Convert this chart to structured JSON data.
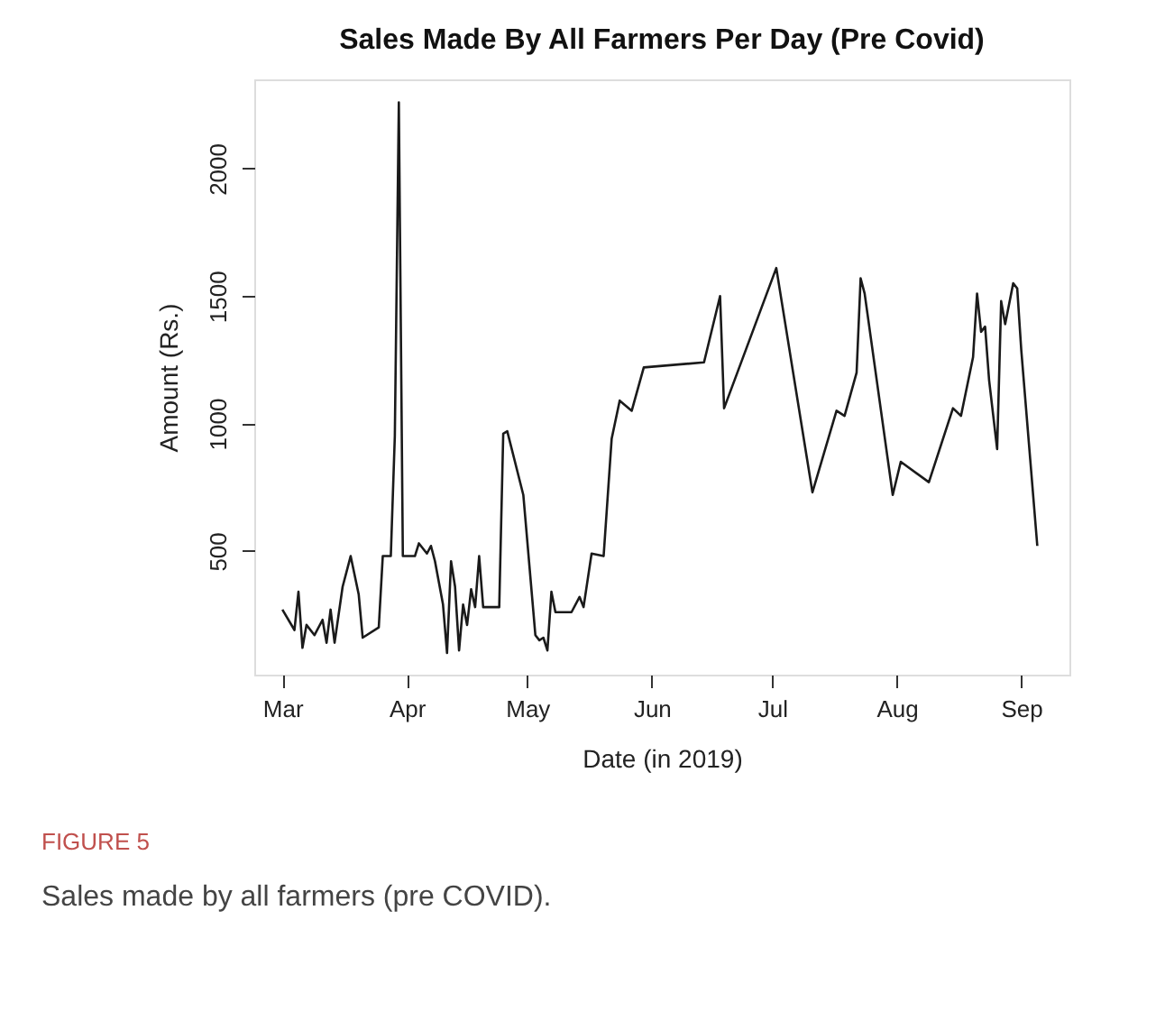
{
  "chart_data": {
    "type": "line",
    "title": "Sales Made By All Farmers Per Day (Pre Covid)",
    "xlabel": "Date (in 2019)",
    "ylabel": "Amount (Rs.)",
    "x": [
      "2019-03-01",
      "2019-03-04",
      "2019-03-05",
      "2019-03-06",
      "2019-03-07",
      "2019-03-09",
      "2019-03-11",
      "2019-03-12",
      "2019-03-13",
      "2019-03-14",
      "2019-03-16",
      "2019-03-18",
      "2019-03-20",
      "2019-03-21",
      "2019-03-25",
      "2019-03-26",
      "2019-03-28",
      "2019-03-29",
      "2019-03-30",
      "2019-03-31",
      "2019-04-03",
      "2019-04-04",
      "2019-04-06",
      "2019-04-07",
      "2019-04-08",
      "2019-04-10",
      "2019-04-11",
      "2019-04-12",
      "2019-04-13",
      "2019-04-14",
      "2019-04-15",
      "2019-04-16",
      "2019-04-17",
      "2019-04-18",
      "2019-04-19",
      "2019-04-20",
      "2019-04-24",
      "2019-04-25",
      "2019-04-26",
      "2019-04-30",
      "2019-05-03",
      "2019-05-04",
      "2019-05-05",
      "2019-05-06",
      "2019-05-07",
      "2019-05-08",
      "2019-05-12",
      "2019-05-14",
      "2019-05-15",
      "2019-05-17",
      "2019-05-20",
      "2019-05-22",
      "2019-05-24",
      "2019-05-27",
      "2019-05-30",
      "2019-06-14",
      "2019-06-18",
      "2019-06-19",
      "2019-07-02",
      "2019-07-11",
      "2019-07-17",
      "2019-07-19",
      "2019-07-22",
      "2019-07-23",
      "2019-07-24",
      "2019-07-31",
      "2019-08-02",
      "2019-08-09",
      "2019-08-15",
      "2019-08-17",
      "2019-08-20",
      "2019-08-21",
      "2019-08-22",
      "2019-08-23",
      "2019-08-24",
      "2019-08-26",
      "2019-08-27",
      "2019-08-28",
      "2019-08-29",
      "2019-08-30",
      "2019-08-31",
      "2019-09-01",
      "2019-09-05"
    ],
    "series": [
      {
        "color": "#1a1a1a",
        "values": [
          270,
          190,
          340,
          120,
          210,
          170,
          230,
          140,
          270,
          140,
          360,
          480,
          330,
          160,
          200,
          480,
          480,
          950,
          2260,
          480,
          480,
          530,
          490,
          520,
          460,
          290,
          100,
          460,
          360,
          110,
          290,
          210,
          350,
          280,
          480,
          280,
          280,
          960,
          970,
          720,
          170,
          150,
          160,
          110,
          340,
          260,
          260,
          320,
          280,
          490,
          480,
          940,
          1090,
          1050,
          1220,
          1240,
          1500,
          1060,
          1610,
          730,
          1050,
          1030,
          1200,
          1570,
          1510,
          720,
          850,
          770,
          1060,
          1030,
          1260,
          1510,
          1360,
          1380,
          1170,
          900,
          1480,
          1390,
          1470,
          1550,
          1530,
          1290,
          520
        ]
      }
    ],
    "xlim": [
      "2019-02-22",
      "2019-09-13"
    ],
    "xticks": [
      {
        "value": "2019-03-01",
        "label": "Mar"
      },
      {
        "value": "2019-04-01",
        "label": "Apr"
      },
      {
        "value": "2019-05-01",
        "label": "May"
      },
      {
        "value": "2019-06-01",
        "label": "Jun"
      },
      {
        "value": "2019-07-01",
        "label": "Jul"
      },
      {
        "value": "2019-08-01",
        "label": "Aug"
      },
      {
        "value": "2019-09-01",
        "label": "Sep"
      }
    ],
    "ylim": [
      15,
      2350
    ],
    "yticks": [
      500,
      1000,
      1500,
      2000
    ],
    "grid": false,
    "marker": "none",
    "line_style": "solid",
    "annotations": [
      "FIGURE 5",
      "Sales made by all farmers (pre COVID)."
    ]
  }
}
